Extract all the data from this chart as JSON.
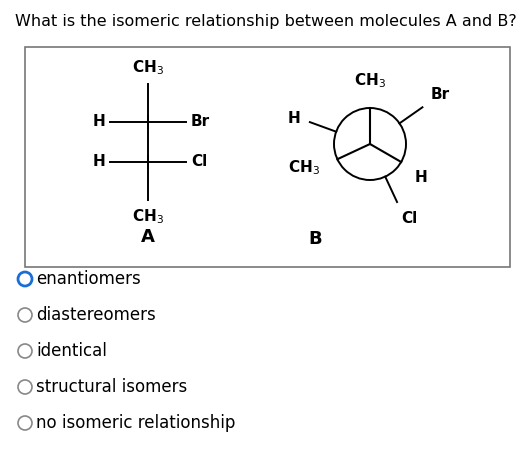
{
  "title": "What is the isomeric relationship between molecules A and B?",
  "title_fontsize": 11.5,
  "background_color": "#ffffff",
  "options": [
    "enantiomers",
    "diastereomers",
    "identical",
    "structural isomers",
    "no isomeric relationship"
  ],
  "selected_option": 0,
  "selected_color": "#1a6fd4",
  "unselected_color": "#888888",
  "option_fontsize": 12,
  "molecule_a_label": "A",
  "molecule_b_label": "B",
  "label_fontsize": 13,
  "chem_fontsize": 11
}
